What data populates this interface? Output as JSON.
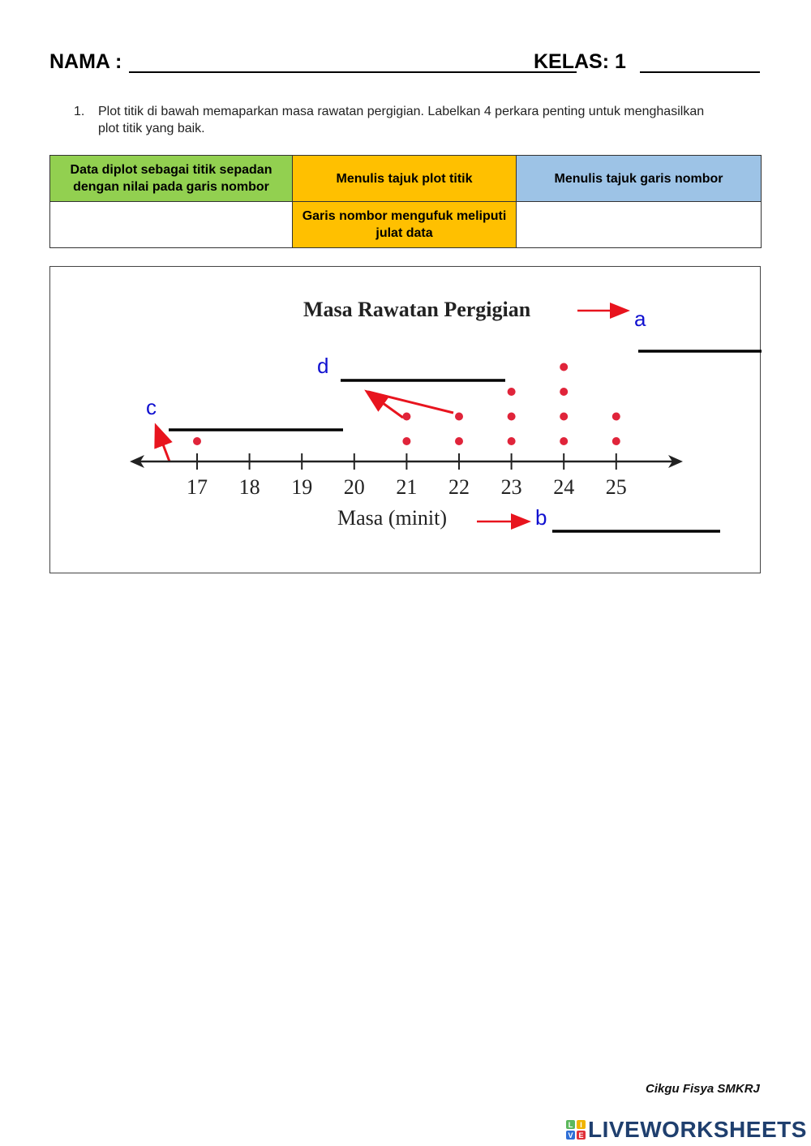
{
  "header": {
    "nama_label": "NAMA :",
    "kelas_label": "KELAS: 1"
  },
  "question": {
    "number": "1.",
    "text": "Plot titik di bawah memaparkan masa rawatan pergigian. Labelkan 4 perkara penting untuk menghasilkan plot titik yang baik."
  },
  "choices": [
    {
      "label": "Data diplot sebagai titik sepadan dengan nilai pada garis nombor",
      "color": "#92d050"
    },
    {
      "label": "Menulis tajuk plot titik",
      "color": "#ffc000"
    },
    {
      "label": "Menulis tajuk garis nombor",
      "color": "#9dc3e6"
    },
    {
      "label": "",
      "color": "#ffffff"
    },
    {
      "label": "Garis nombor mengufuk meliputi julat data",
      "color": "#ffc000"
    },
    {
      "label": "",
      "color": "#ffffff"
    }
  ],
  "plot_labels": {
    "a": "a",
    "b": "b",
    "c": "c",
    "d": "d"
  },
  "chart_data": {
    "type": "scatter",
    "subtype": "dot-plot",
    "title": "Masa Rawatan Pergigian",
    "xlabel": "Masa (minit)",
    "ylabel": "",
    "categories": [
      "17",
      "18",
      "19",
      "20",
      "21",
      "22",
      "23",
      "24",
      "25"
    ],
    "values": [
      1,
      0,
      0,
      0,
      2,
      2,
      3,
      4,
      2
    ],
    "xlim": [
      16,
      26
    ],
    "grid": false,
    "dot_color": "#e0243a",
    "annotation_color": "#1010d0",
    "arrow_color": "#e8141e",
    "annotations": [
      {
        "label": "a",
        "points_to": "title"
      },
      {
        "label": "b",
        "points_to": "axis title"
      },
      {
        "label": "c",
        "points_to": "number line"
      },
      {
        "label": "d",
        "points_to": "data points"
      }
    ]
  },
  "footer": {
    "credit": "Cikgu Fisya SMKRJ",
    "brand": "LIVEWORKSHEETS",
    "logo_letters": [
      "L",
      "I",
      "V",
      "E"
    ],
    "logo_colors": [
      "#5cb85c",
      "#f0b400",
      "#2f6fd6",
      "#e0303a"
    ]
  }
}
